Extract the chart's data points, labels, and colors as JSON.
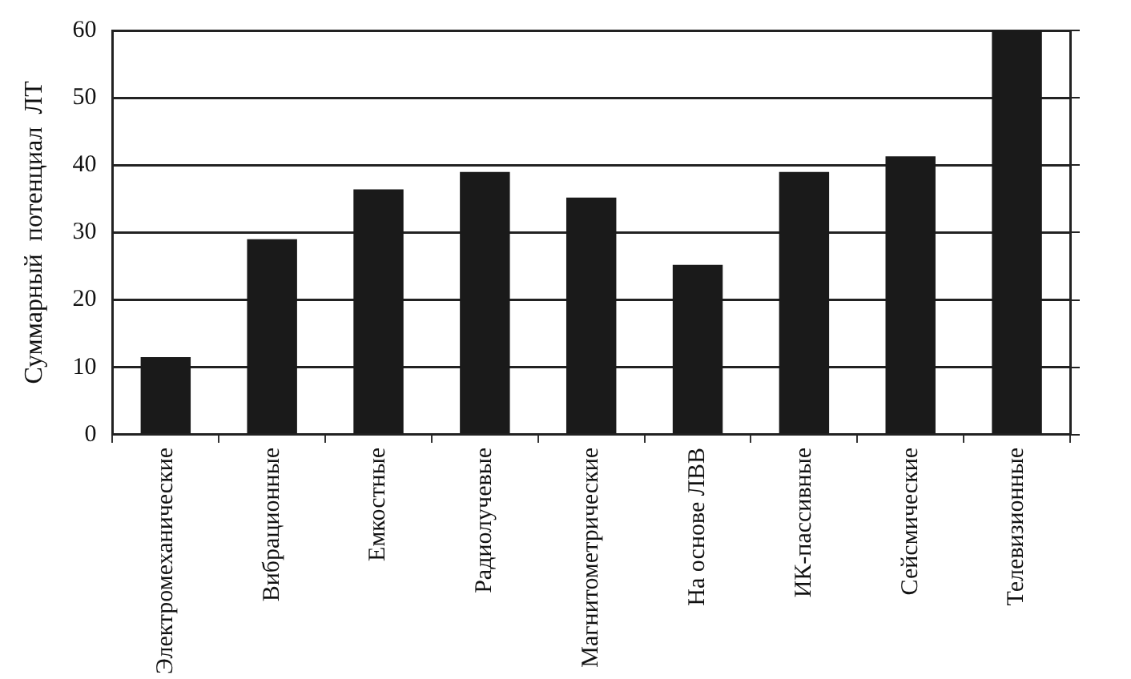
{
  "chart_data": {
    "type": "bar",
    "ylabel": "Суммарный  потенциал  ЛТ",
    "categories": [
      "Электромеханические",
      "Вибрационные",
      "Емкостные",
      "Радиолучевые",
      "Магнитометрические",
      "На основе ЛВВ",
      "ИК-пассивные",
      "Сейсмические",
      "Телевизионные"
    ],
    "values": [
      11.5,
      29,
      36.4,
      39,
      35.2,
      25.2,
      39,
      41.3,
      60
    ],
    "color": "#1a1a1a",
    "ylim": [
      0,
      60
    ],
    "yticks": [
      0,
      10,
      20,
      30,
      40,
      50,
      60
    ],
    "grid": "y",
    "legend": false
  }
}
